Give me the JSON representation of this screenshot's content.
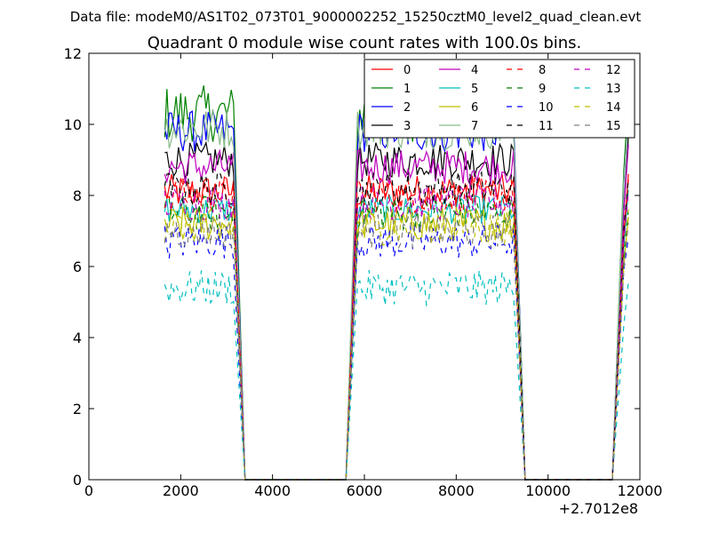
{
  "chart_data": {
    "type": "line",
    "suptitle": "Data file: modeM0/AS1T02_073T01_9000002252_15250cztM0_level2_quad_clean.evt",
    "title": "Quadrant 0 module wise count rates with 100.0s bins.",
    "xlabel": "",
    "ylabel": "",
    "x_offset_label": "+2.7012e8",
    "xlim": [
      0,
      12000
    ],
    "ylim": [
      0,
      12
    ],
    "xticks": [
      "0",
      "2000",
      "4000",
      "6000",
      "8000",
      "10000",
      "12000"
    ],
    "yticks": [
      "0",
      "2",
      "4",
      "6",
      "8",
      "10",
      "12"
    ],
    "grid": false,
    "legend_position": "top-right",
    "segments": [
      {
        "x_start": 1650,
        "x_end": 3150
      },
      {
        "x_start": 5850,
        "x_end": 9250
      },
      {
        "x_start": 11650,
        "x_end": 11750
      }
    ],
    "series": [
      {
        "name": "0",
        "color": "#ff0000",
        "style": "solid",
        "level": 8.1,
        "amp": 0.25
      },
      {
        "name": "1",
        "color": "#008000",
        "style": "solid",
        "level": 10.3,
        "amp": 0.4
      },
      {
        "name": "2",
        "color": "#0000ff",
        "style": "solid",
        "level": 9.8,
        "amp": 0.3
      },
      {
        "name": "3",
        "color": "#000000",
        "style": "solid",
        "level": 9.0,
        "amp": 0.25
      },
      {
        "name": "4",
        "color": "#bf00bf",
        "style": "solid",
        "level": 8.8,
        "amp": 0.25
      },
      {
        "name": "5",
        "color": "#00bfbf",
        "style": "solid",
        "level": 7.6,
        "amp": 0.2
      },
      {
        "name": "6",
        "color": "#bfbf00",
        "style": "solid",
        "level": 7.2,
        "amp": 0.25
      },
      {
        "name": "7",
        "color": "#88bb88",
        "style": "solid",
        "level": 9.9,
        "amp": 0.3
      },
      {
        "name": "8",
        "color": "#ff0000",
        "style": "dashed",
        "level": 8.0,
        "amp": 0.25
      },
      {
        "name": "9",
        "color": "#008000",
        "style": "dashed",
        "level": 7.5,
        "amp": 0.25
      },
      {
        "name": "10",
        "color": "#0000ff",
        "style": "dashed",
        "level": 6.7,
        "amp": 0.25
      },
      {
        "name": "11",
        "color": "#000000",
        "style": "dashed",
        "level": 8.2,
        "amp": 0.25
      },
      {
        "name": "12",
        "color": "#bf00bf",
        "style": "dashed",
        "level": 7.8,
        "amp": 0.25
      },
      {
        "name": "13",
        "color": "#00bfbf",
        "style": "dashed",
        "level": 5.4,
        "amp": 0.25
      },
      {
        "name": "14",
        "color": "#bfbf00",
        "style": "dashed",
        "level": 7.1,
        "amp": 0.25
      },
      {
        "name": "15",
        "color": "#808080",
        "style": "dashed",
        "level": 7.0,
        "amp": 0.25
      }
    ]
  }
}
